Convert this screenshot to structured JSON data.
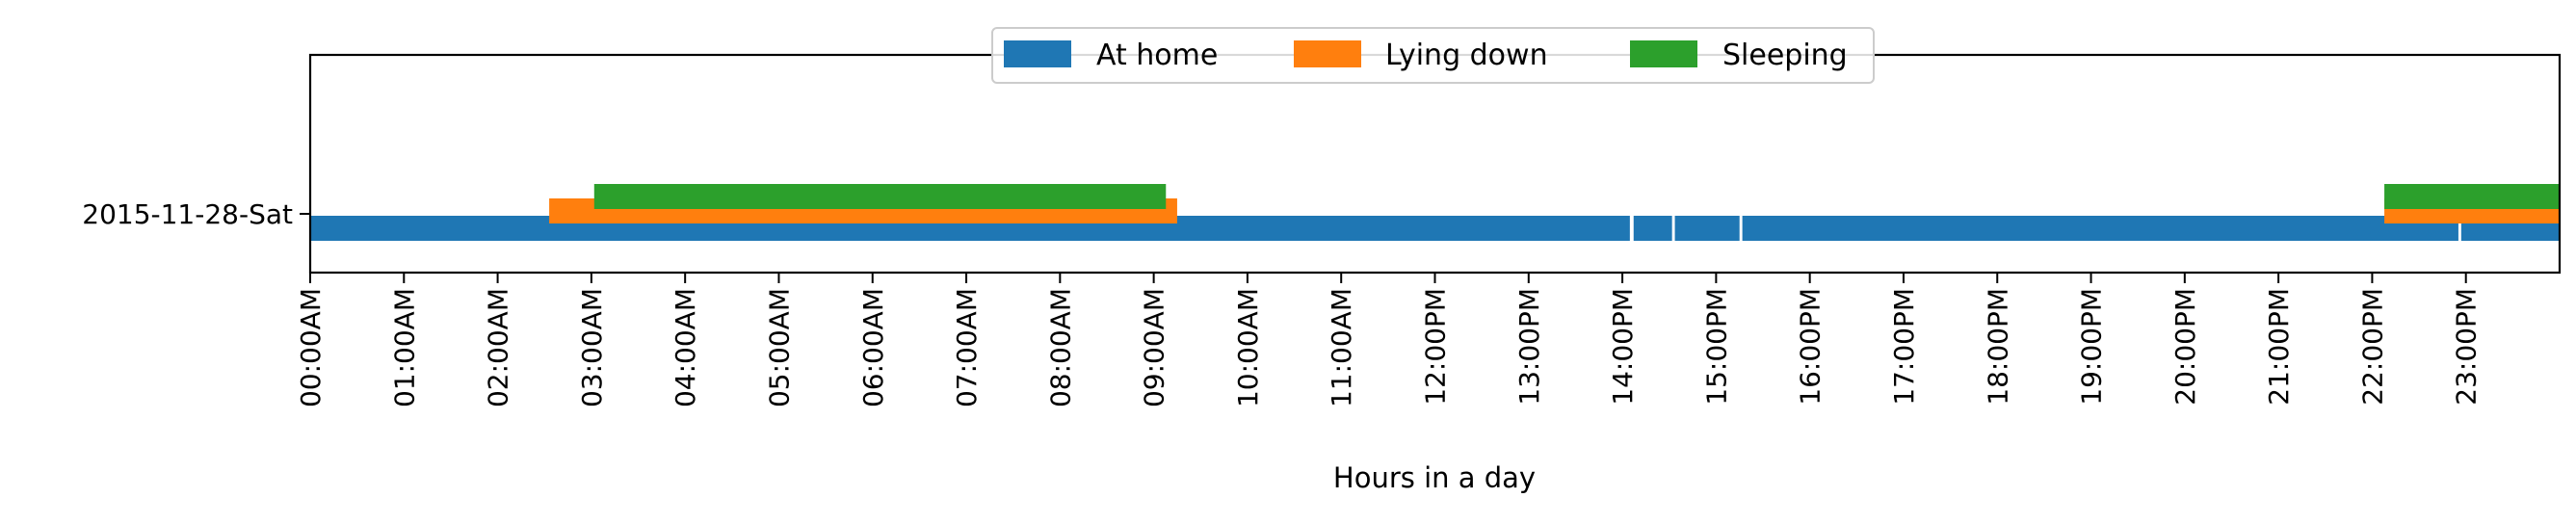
{
  "chart_data": {
    "type": "timeline",
    "xlabel": "Hours in a day",
    "xlim": [
      0,
      24
    ],
    "xticks": [
      {
        "hour": 0,
        "label": "00:00AM"
      },
      {
        "hour": 1,
        "label": "01:00AM"
      },
      {
        "hour": 2,
        "label": "02:00AM"
      },
      {
        "hour": 3,
        "label": "03:00AM"
      },
      {
        "hour": 4,
        "label": "04:00AM"
      },
      {
        "hour": 5,
        "label": "05:00AM"
      },
      {
        "hour": 6,
        "label": "06:00AM"
      },
      {
        "hour": 7,
        "label": "07:00AM"
      },
      {
        "hour": 8,
        "label": "08:00AM"
      },
      {
        "hour": 9,
        "label": "09:00AM"
      },
      {
        "hour": 10,
        "label": "10:00AM"
      },
      {
        "hour": 11,
        "label": "11:00AM"
      },
      {
        "hour": 12,
        "label": "12:00PM"
      },
      {
        "hour": 13,
        "label": "13:00PM"
      },
      {
        "hour": 14,
        "label": "14:00PM"
      },
      {
        "hour": 15,
        "label": "15:00PM"
      },
      {
        "hour": 16,
        "label": "16:00PM"
      },
      {
        "hour": 17,
        "label": "17:00PM"
      },
      {
        "hour": 18,
        "label": "18:00PM"
      },
      {
        "hour": 19,
        "label": "19:00PM"
      },
      {
        "hour": 20,
        "label": "20:00PM"
      },
      {
        "hour": 21,
        "label": "21:00PM"
      },
      {
        "hour": 22,
        "label": "22:00PM"
      },
      {
        "hour": 23,
        "label": "23:00PM"
      }
    ],
    "categories": [
      "2015-11-28-Sat"
    ],
    "legend_position": "top-center",
    "grid": false,
    "series": [
      {
        "name": "At home",
        "color": "#1f77b4",
        "intervals": [
          [
            0.0,
            14.08
          ],
          [
            14.12,
            14.53
          ],
          [
            14.56,
            15.25
          ],
          [
            15.28,
            22.92
          ],
          [
            22.95,
            24.0
          ]
        ]
      },
      {
        "name": "Lying down",
        "color": "#ff7f0e",
        "intervals": [
          [
            2.55,
            9.25
          ],
          [
            22.13,
            24.0
          ]
        ]
      },
      {
        "name": "Sleeping",
        "color": "#2ca02c",
        "intervals": [
          [
            3.03,
            9.13
          ],
          [
            22.13,
            24.0
          ]
        ]
      }
    ]
  }
}
